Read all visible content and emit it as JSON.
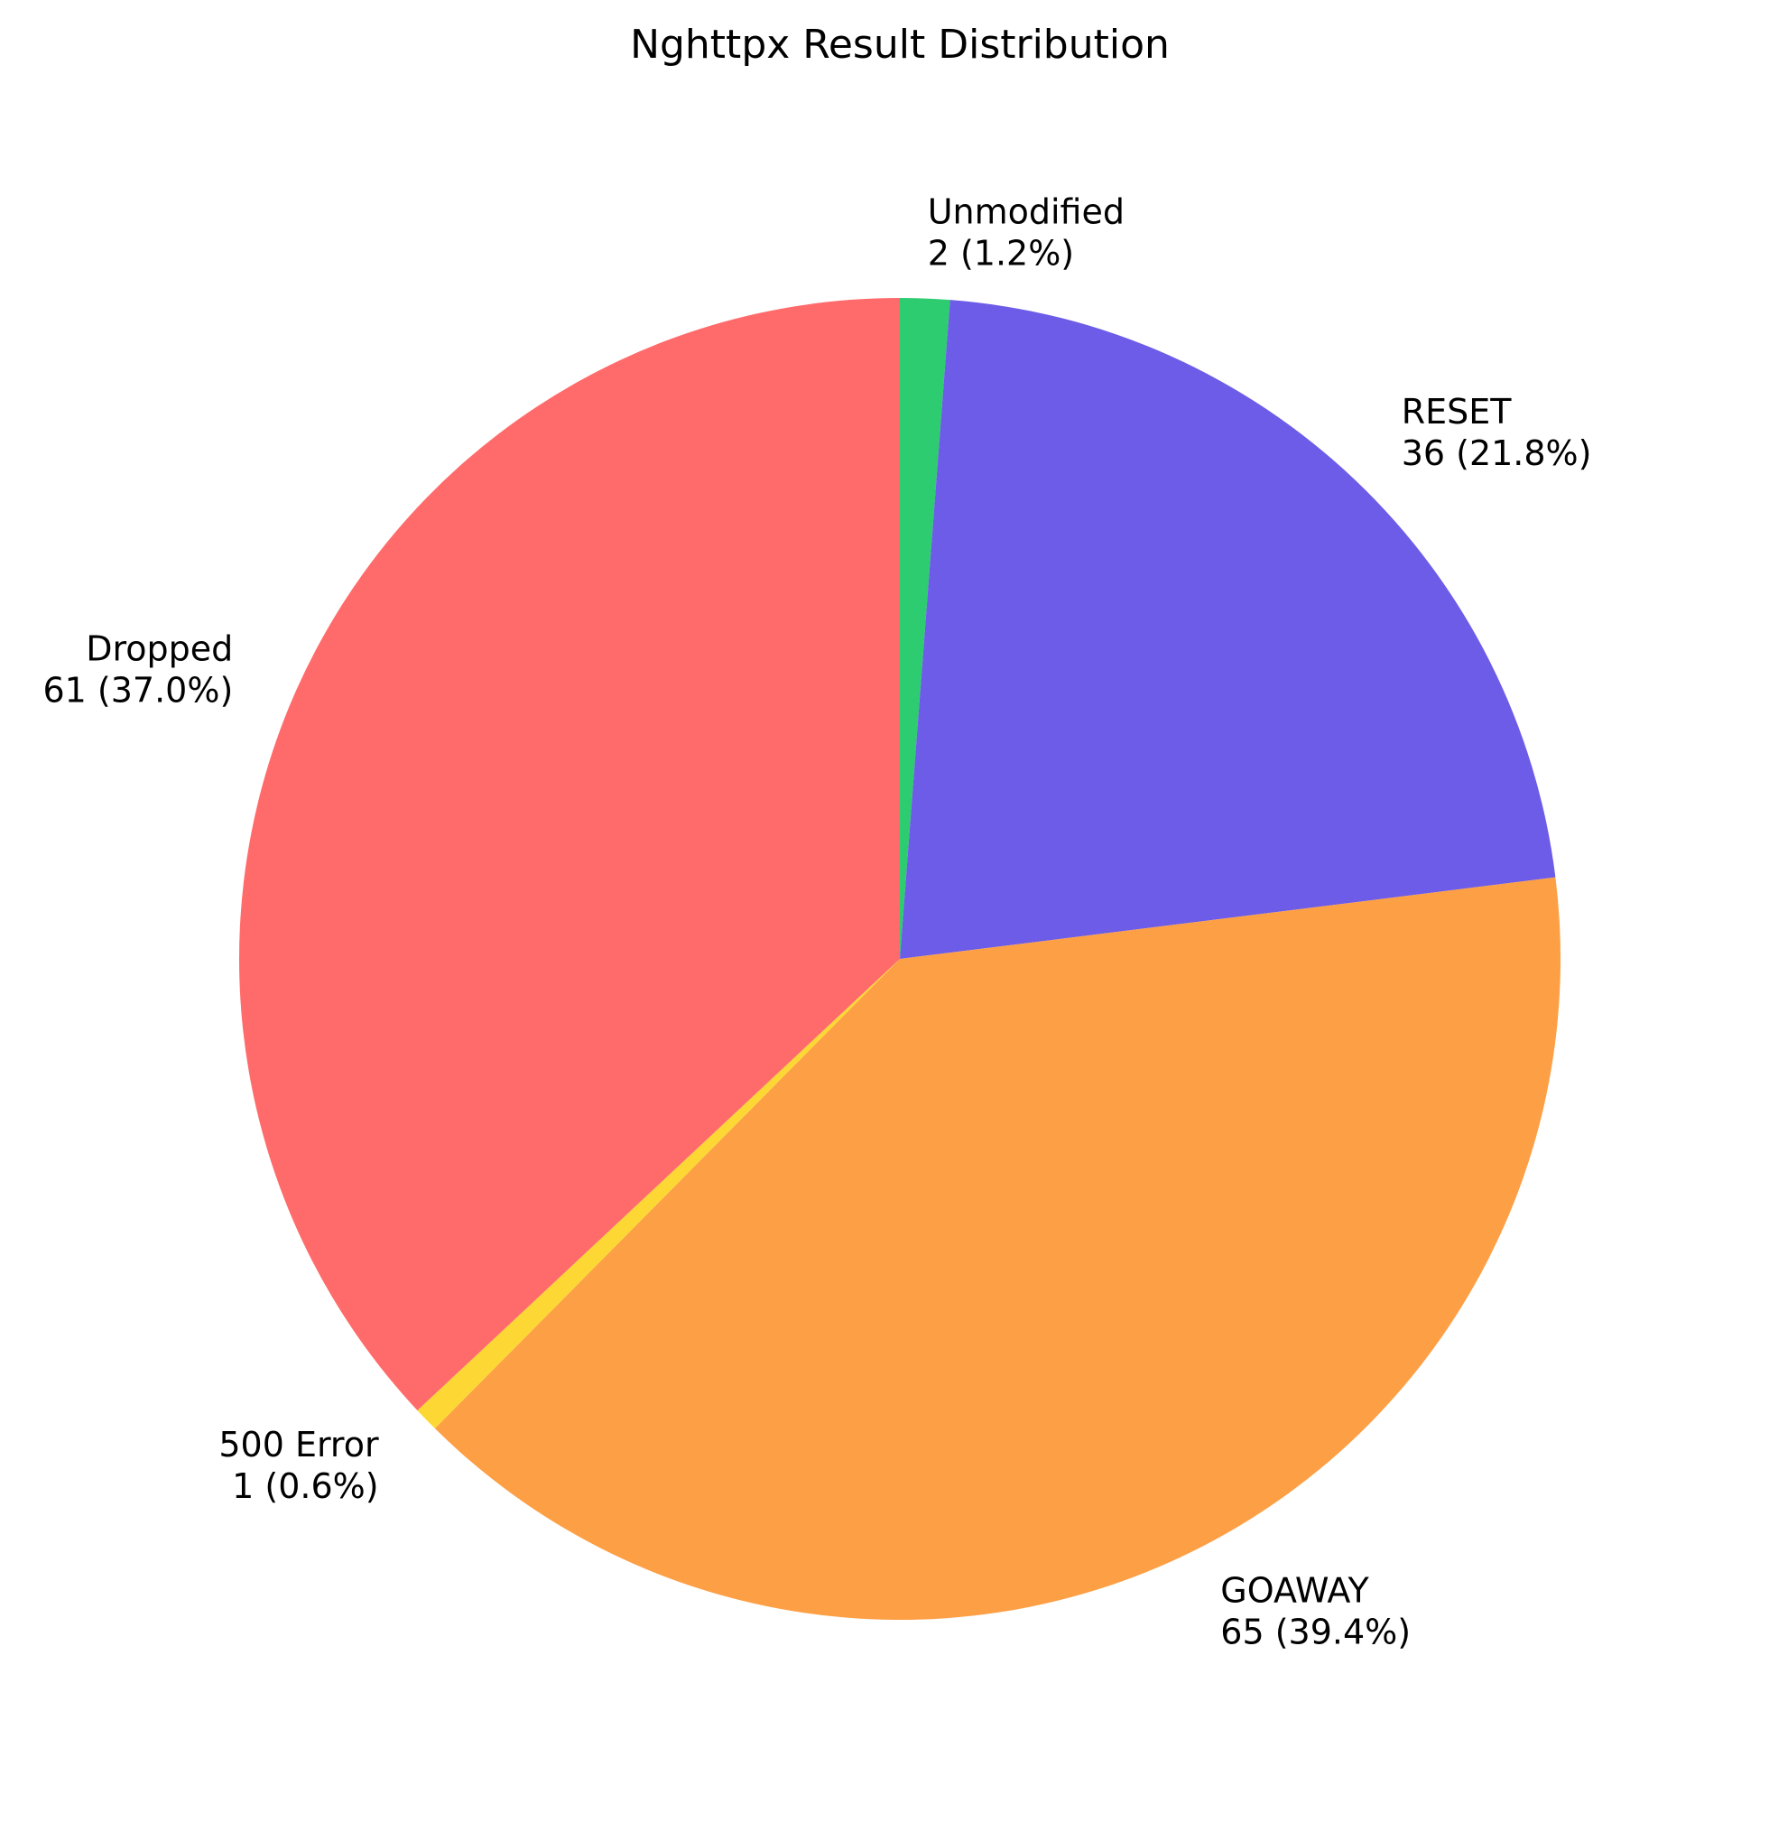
{
  "chart_data": {
    "type": "pie",
    "title": "Nghttpx Result Distribution",
    "start_angle_deg": 90,
    "direction": "clockwise",
    "slices": [
      {
        "label": "Unmodified",
        "value": 2,
        "display": "2 (1.2%)",
        "color": "#2ecc71"
      },
      {
        "label": "RESET",
        "value": 36,
        "display": "36 (21.8%)",
        "color": "#6c5ce7"
      },
      {
        "label": "GOAWAY",
        "value": 65,
        "display": "65 (39.4%)",
        "color": "#fd9f45"
      },
      {
        "label": "500 Error",
        "value": 1,
        "display": "1 (0.6%)",
        "color": "#fdd835"
      },
      {
        "label": "Dropped",
        "value": 61,
        "display": "61 (37.0%)",
        "color": "#ff6b6b"
      }
    ]
  }
}
